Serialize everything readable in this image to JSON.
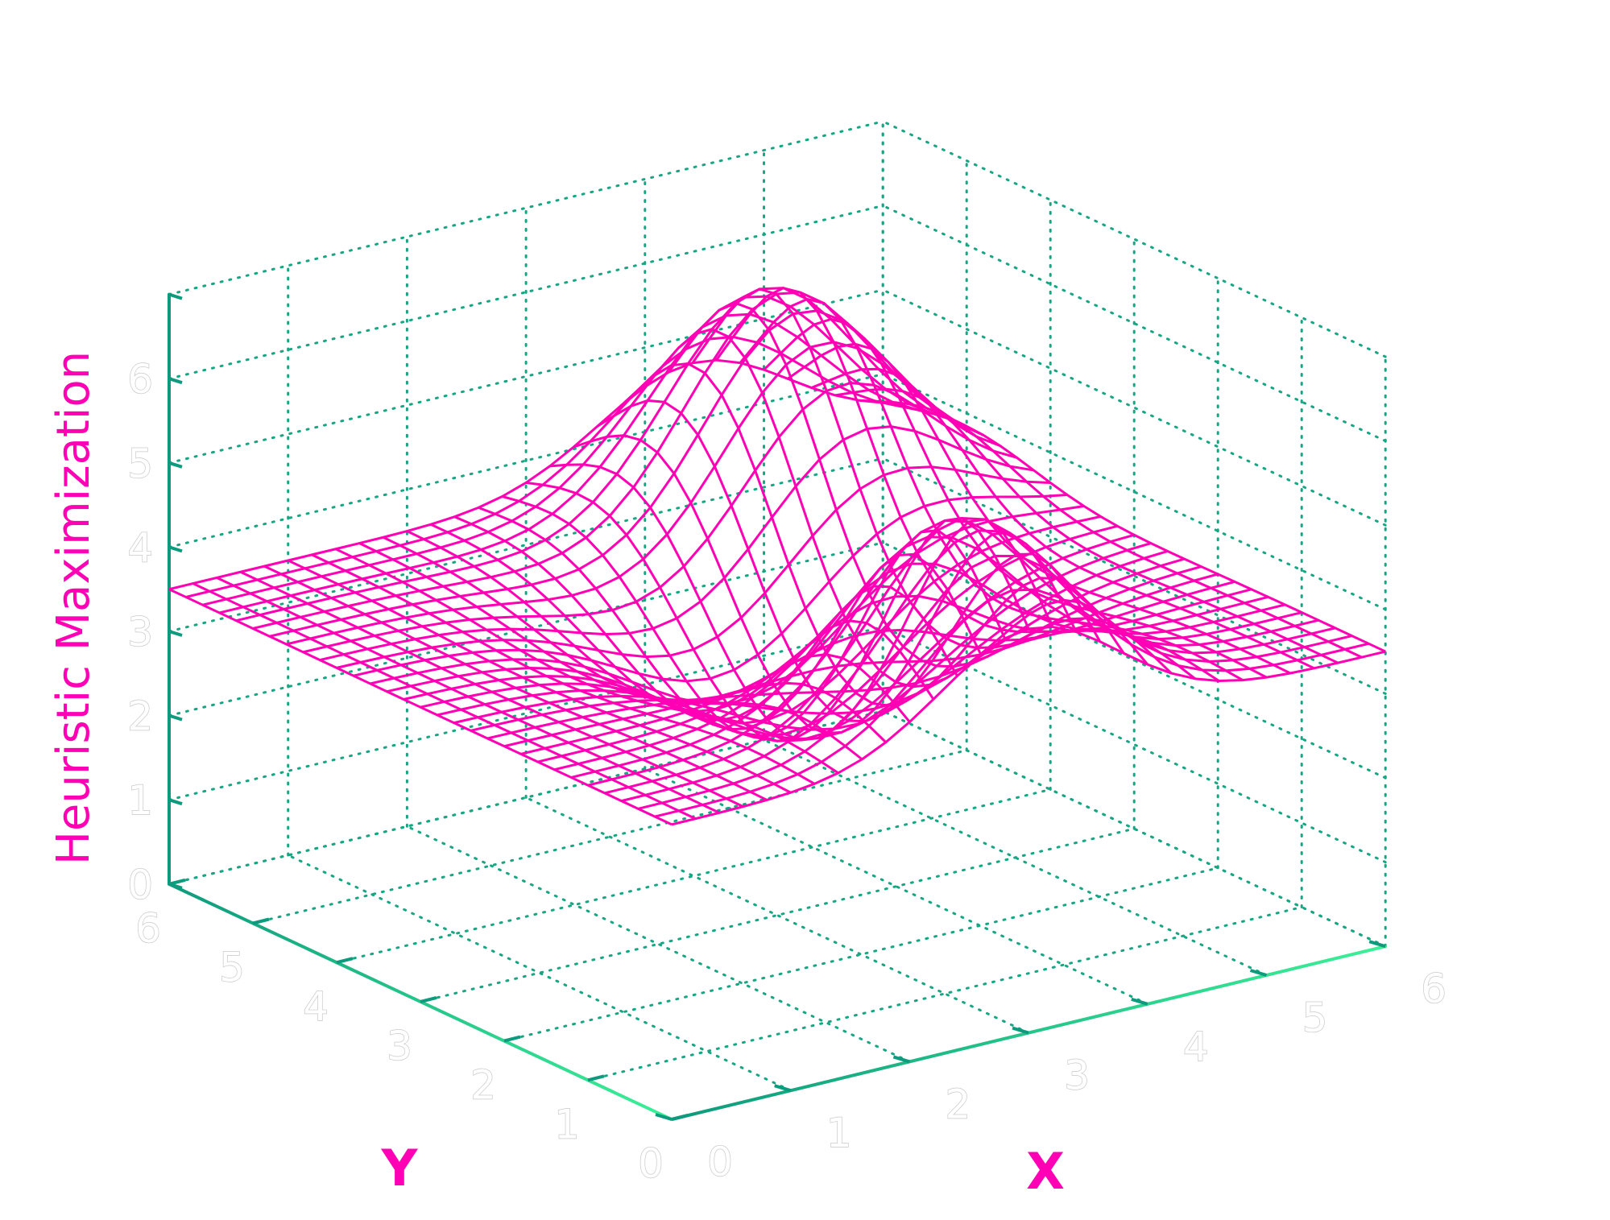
{
  "chart_data": {
    "type": "surface",
    "title": "",
    "xlabel": "X",
    "ylabel": "Y",
    "zlabel": "Heuristic Maximization",
    "xlim": [
      0,
      6
    ],
    "ylim": [
      0,
      6
    ],
    "zlim": [
      0,
      7
    ],
    "xticks": [
      "0",
      "1",
      "2",
      "3",
      "4",
      "5",
      "6"
    ],
    "yticks": [
      "0",
      "1",
      "2",
      "3",
      "4",
      "5",
      "6"
    ],
    "zticks": [
      "0",
      "1",
      "2",
      "3",
      "4",
      "5",
      "6"
    ],
    "surface": {
      "x_range": [
        0,
        6
      ],
      "y_range": [
        0,
        6
      ],
      "grid_points": 31,
      "baseline": 3.5,
      "features": [
        {
          "kind": "peak",
          "x": 3.0,
          "y": 0.8,
          "amplitude": 2.3,
          "sigma": 0.75
        },
        {
          "kind": "valley",
          "x": 3.3,
          "y": 3.2,
          "amplitude": -1.6,
          "sigma": 0.95
        },
        {
          "kind": "peak",
          "x": 4.4,
          "y": 5.0,
          "amplitude": 2.6,
          "sigma": 0.8
        }
      ]
    },
    "grid": true,
    "colors": {
      "surface": "#ff00b4",
      "axis_start": "#0e9a7c",
      "axis_end": "#3cf098",
      "grid": "#16a682",
      "xlabel": "#ff00b4",
      "ylabel": "#ff00b4",
      "zlabel": "#ff00b4"
    }
  }
}
